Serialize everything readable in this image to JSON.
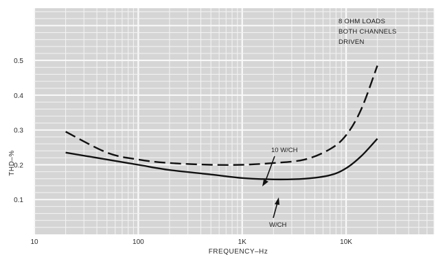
{
  "chart_data": {
    "type": "line",
    "xlabel": "FREQUENCY–Hz",
    "ylabel": "THD–%",
    "xscale": "log",
    "xlim": [
      10,
      70000
    ],
    "ylim": [
      0,
      0.65
    ],
    "xticks": [
      {
        "value": 10,
        "label": "10"
      },
      {
        "value": 100,
        "label": "100"
      },
      {
        "value": 1000,
        "label": "1K"
      },
      {
        "value": 10000,
        "label": "10K"
      }
    ],
    "yticks": [
      {
        "value": 0.1,
        "label": "0.1"
      },
      {
        "value": 0.2,
        "label": "0.2"
      },
      {
        "value": 0.3,
        "label": "0.3"
      },
      {
        "value": 0.4,
        "label": "0.4"
      },
      {
        "value": 0.5,
        "label": "0.5"
      }
    ],
    "grid": true,
    "note_lines": [
      "8 OHM LOADS",
      "BOTH CHANNELS",
      "DRIVEN"
    ],
    "series": [
      {
        "name": "10 W/CH",
        "style": "dashed",
        "color": "#111111",
        "points": [
          [
            20,
            0.295
          ],
          [
            50,
            0.235
          ],
          [
            100,
            0.215
          ],
          [
            200,
            0.205
          ],
          [
            500,
            0.2
          ],
          [
            1000,
            0.2
          ],
          [
            2000,
            0.205
          ],
          [
            4000,
            0.215
          ],
          [
            7000,
            0.245
          ],
          [
            10000,
            0.285
          ],
          [
            14000,
            0.36
          ],
          [
            20000,
            0.485
          ]
        ]
      },
      {
        "name": "W/CH",
        "style": "solid",
        "color": "#111111",
        "points": [
          [
            20,
            0.235
          ],
          [
            50,
            0.215
          ],
          [
            100,
            0.2
          ],
          [
            200,
            0.185
          ],
          [
            500,
            0.172
          ],
          [
            1000,
            0.162
          ],
          [
            2000,
            0.158
          ],
          [
            4000,
            0.16
          ],
          [
            7000,
            0.17
          ],
          [
            10000,
            0.19
          ],
          [
            14000,
            0.225
          ],
          [
            20000,
            0.275
          ]
        ]
      }
    ],
    "annotations": [
      {
        "text": "10 W/CH",
        "target": [
          3000,
          0.21
        ]
      },
      {
        "text": "W/CH",
        "target": [
          3500,
          0.16
        ]
      }
    ]
  },
  "colors": {
    "paper": "#d5d5d5",
    "grid_light": "#f2f2f2",
    "grid_major": "#fafafa",
    "curve": "#111111"
  }
}
